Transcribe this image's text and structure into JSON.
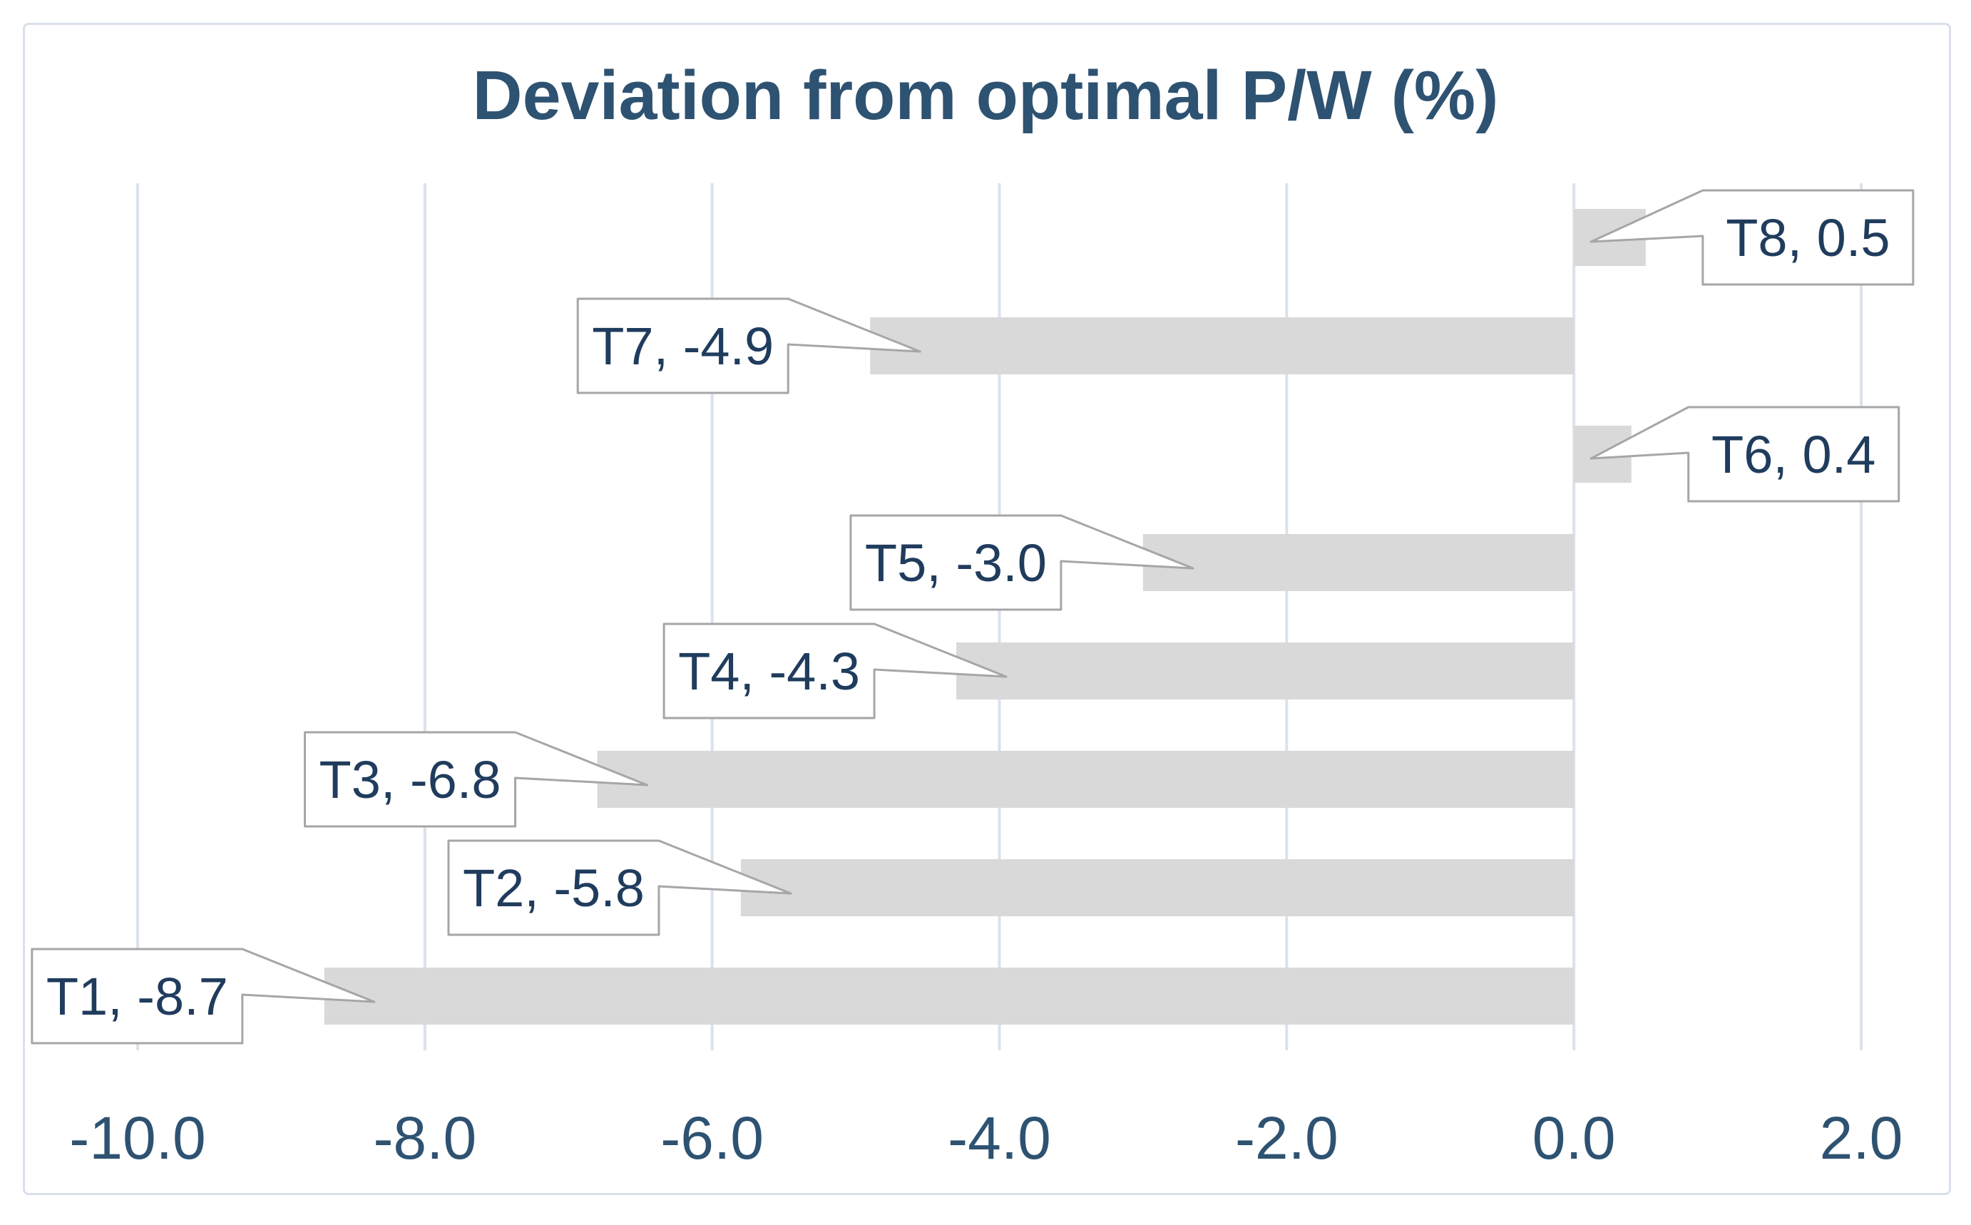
{
  "chart_data": {
    "type": "bar",
    "orientation": "horizontal",
    "title": "Deviation from optimal P/W (%)",
    "categories": [
      "T8",
      "T7",
      "T6",
      "T5",
      "T4",
      "T3",
      "T2",
      "T1"
    ],
    "values": [
      0.5,
      -4.9,
      0.4,
      -3.0,
      -4.3,
      -6.8,
      -5.8,
      -8.7
    ],
    "points": [
      {
        "category": "T8",
        "value": 0.5,
        "label": "T8, 0.5"
      },
      {
        "category": "T7",
        "value": -4.9,
        "label": "T7, -4.9"
      },
      {
        "category": "T6",
        "value": 0.4,
        "label": "T6, 0.4"
      },
      {
        "category": "T5",
        "value": -3.0,
        "label": "T5, -3.0"
      },
      {
        "category": "T4",
        "value": -4.3,
        "label": "T4, -4.3"
      },
      {
        "category": "T3",
        "value": -6.8,
        "label": "T3, -6.8"
      },
      {
        "category": "T2",
        "value": -5.8,
        "label": "T2, -5.8"
      },
      {
        "category": "T1",
        "value": -8.7,
        "label": "T1, -8.7"
      }
    ],
    "x_ticks": [
      {
        "value": -10,
        "label": "-10.0"
      },
      {
        "value": -8,
        "label": "-8.0"
      },
      {
        "value": -6,
        "label": "-6.0"
      },
      {
        "value": -4,
        "label": "-4.0"
      },
      {
        "value": -2,
        "label": "-2.0"
      },
      {
        "value": 0,
        "label": "0.0"
      },
      {
        "value": 2,
        "label": "2.0"
      }
    ],
    "xlim": [
      -10,
      2
    ],
    "ylabel": "",
    "xlabel": "",
    "grid": "vertical-gridlines-only",
    "legend": "none",
    "data_label_style": "white-callout-box-with-leader-wedge"
  },
  "style": {
    "title_color": "#2e5271",
    "axis_label_color": "#2e5271",
    "data_label_color": "#203c5d",
    "gridline_color": "#dae2ec",
    "frame_border_color": "#d9e0ea",
    "bar_color": "#d9d9d9",
    "callout_border_color": "#a6a6a6",
    "callout_fill": "#ffffff",
    "background": "#ffffff"
  }
}
